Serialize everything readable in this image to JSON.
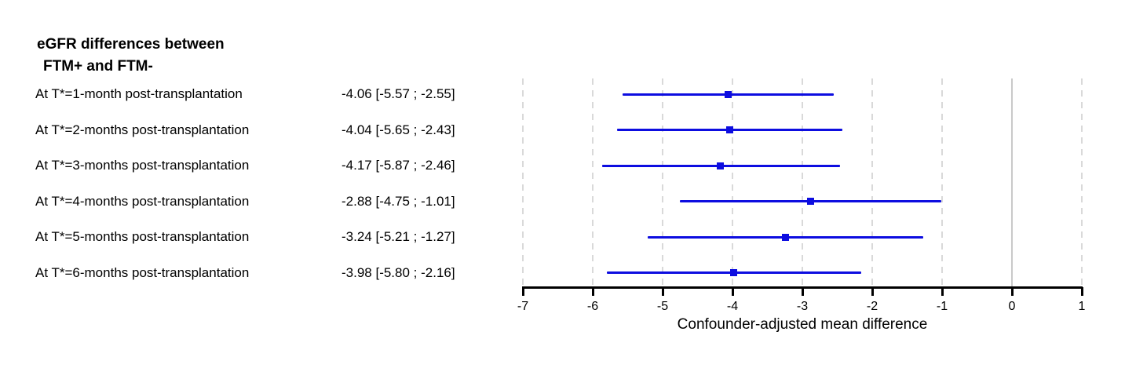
{
  "title": {
    "line1": "eGFR differences between",
    "line2": "FTM+ and FTM-"
  },
  "chart_data": {
    "type": "forest",
    "title": "eGFR differences between FTM+ and FTM-",
    "xlabel": "Confounder-adjusted mean difference",
    "xlim": [
      -7,
      1
    ],
    "x_ticks": [
      -7,
      -6,
      -5,
      -4,
      -3,
      -2,
      -1,
      0,
      1
    ],
    "reference_line": 0,
    "grid": "vertical dashed gridlines at every tick, solid light line at 0",
    "legend": "none",
    "rows": [
      {
        "label": "At T*=1-month post-transplantation",
        "estimate": -4.06,
        "ci_low": -5.57,
        "ci_high": -2.55,
        "estimate_text": "-4.06 [-5.57 ; -2.55]"
      },
      {
        "label": "At T*=2-months post-transplantation",
        "estimate": -4.04,
        "ci_low": -5.65,
        "ci_high": -2.43,
        "estimate_text": "-4.04 [-5.65 ; -2.43]"
      },
      {
        "label": "At T*=3-months post-transplantation",
        "estimate": -4.17,
        "ci_low": -5.87,
        "ci_high": -2.46,
        "estimate_text": "-4.17 [-5.87 ; -2.46]"
      },
      {
        "label": "At T*=4-months post-transplantation",
        "estimate": -2.88,
        "ci_low": -4.75,
        "ci_high": -1.01,
        "estimate_text": "-2.88 [-4.75 ; -1.01]"
      },
      {
        "label": "At T*=5-months post-transplantation",
        "estimate": -3.24,
        "ci_low": -5.21,
        "ci_high": -1.27,
        "estimate_text": "-3.24 [-5.21 ; -1.27]"
      },
      {
        "label": "At T*=6-months post-transplantation",
        "estimate": -3.98,
        "ci_low": -5.8,
        "ci_high": -2.16,
        "estimate_text": "-3.98 [-5.80 ; -2.16]"
      }
    ],
    "colors": {
      "ci_line": "#0d0de0",
      "marker": "#0d0de0",
      "gridline": "#d9d9d9",
      "zero_line": "#c9c9c9",
      "axis": "#000000"
    }
  }
}
